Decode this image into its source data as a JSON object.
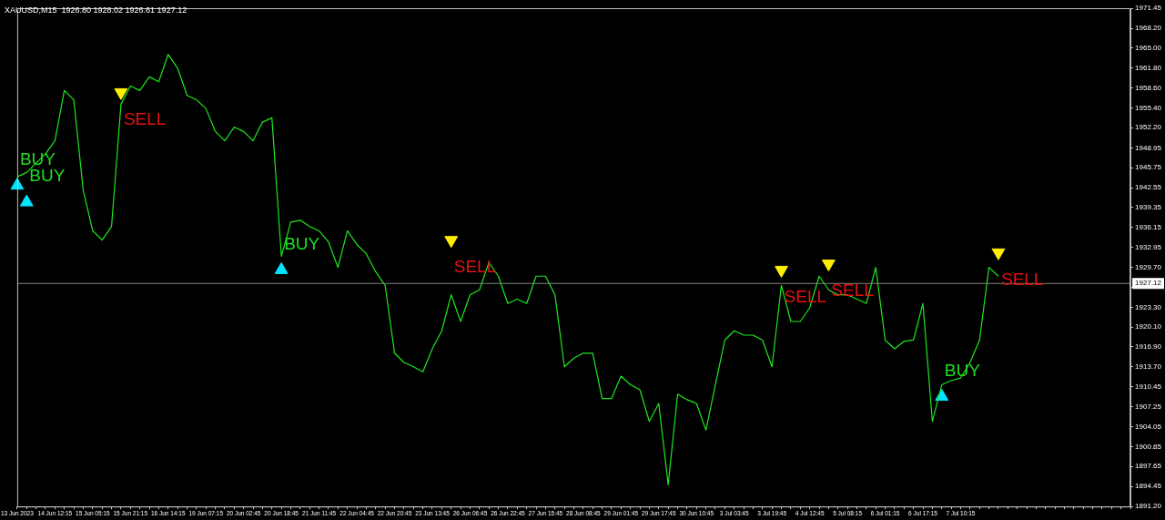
{
  "chart_data": {
    "type": "line",
    "title": "XAUUSD,M15  1926.80 1928.02 1926.61 1927.12",
    "categories": [
      "13 Jun 2023",
      null,
      null,
      null,
      "14 Jun 12:15",
      null,
      null,
      null,
      "15 Jun 05:15",
      null,
      null,
      null,
      "15 Jun 21:15",
      null,
      null,
      null,
      "16 Jun 14:15",
      null,
      null,
      null,
      "19 Jun 07:15",
      null,
      null,
      null,
      "20 Jun 02:45",
      null,
      null,
      null,
      "20 Jun 18:45",
      null,
      null,
      null,
      "21 Jun 11:45",
      null,
      null,
      null,
      "22 Jun 04:45",
      null,
      null,
      null,
      "22 Jun 20:45",
      null,
      null,
      null,
      "23 Jun 13:45",
      null,
      null,
      null,
      "26 Jun 06:45",
      null,
      null,
      null,
      "26 Jun 22:45",
      null,
      null,
      null,
      "27 Jun 15:45",
      null,
      null,
      null,
      "28 Jun 08:45",
      null,
      null,
      null,
      "29 Jun 01:45",
      null,
      null,
      null,
      "29 Jun 17:45",
      null,
      null,
      null,
      "30 Jun 10:45",
      null,
      null,
      null,
      "3 Jul 03:45",
      null,
      null,
      null,
      "3 Jul 19:45",
      null,
      null,
      null,
      "4 Jul 12:45",
      null,
      null,
      null,
      "5 Jul 08:15",
      null,
      null,
      null,
      "6 Jul 01:15",
      null,
      null,
      null,
      "6 Jul 17:15",
      null,
      null,
      null,
      "7 Jul 10:15",
      null,
      null,
      null,
      null,
      null,
      null,
      null,
      null,
      null,
      null,
      null,
      null,
      null,
      null,
      null,
      null,
      null,
      null
    ],
    "series": [
      {
        "color": "#1ee81e",
        "marker": "none",
        "values": [
          1944.3,
          1945.0,
          1946.5,
          1948.0,
          1950.1,
          1958.2,
          1956.7,
          1942.1,
          1935.6,
          1934.1,
          1936.3,
          1956.0,
          1958.9,
          1958.2,
          1960.4,
          1959.6,
          1964.0,
          1961.8,
          1957.4,
          1956.7,
          1955.3,
          1951.6,
          1950.1,
          1952.3,
          1951.6,
          1950.1,
          1953.1,
          1953.8,
          1931.5,
          1937.0,
          1937.3,
          1936.3,
          1935.6,
          1933.8,
          1929.7,
          1935.6,
          1933.4,
          1931.9,
          1929.0,
          1926.8,
          1915.9,
          1914.4,
          1913.7,
          1912.9,
          1916.6,
          1919.5,
          1925.3,
          1921.0,
          1925.3,
          1926.1,
          1930.5,
          1928.3,
          1923.9,
          1924.6,
          1923.9,
          1928.3,
          1928.3,
          1925.3,
          1913.7,
          1915.1,
          1915.9,
          1915.9,
          1908.6,
          1908.6,
          1912.2,
          1910.8,
          1910.0,
          1904.9,
          1907.8,
          1894.7,
          1909.3,
          1908.4,
          1907.8,
          1903.5,
          1910.8,
          1918.0,
          1919.5,
          1918.8,
          1918.8,
          1918.0,
          1913.7,
          1926.8,
          1921.0,
          1921.0,
          1923.2,
          1928.3,
          1926.1,
          1925.3,
          1925.3,
          1924.6,
          1923.9,
          1929.7,
          1918.0,
          1916.6,
          1917.8,
          1918.0,
          1923.9,
          1904.9,
          1910.8,
          1911.5,
          1911.9,
          1914.4,
          1918.0,
          1929.7,
          1928.3,
          null,
          null,
          null,
          null,
          null,
          null,
          null,
          null,
          null,
          null,
          null,
          null,
          null,
          null
        ]
      },
      {
        "type": "scatter",
        "color": "#00e5ff",
        "marker": "triangle",
        "values": [
          1942.9,
          1940.2,
          null,
          null,
          null,
          null,
          null,
          null,
          null,
          null,
          null,
          null,
          null,
          null,
          null,
          null,
          null,
          null,
          null,
          null,
          null,
          null,
          null,
          null,
          null,
          null,
          null,
          null,
          1929.3,
          null,
          null,
          null,
          null,
          null,
          null,
          null,
          null,
          null,
          null,
          null,
          null,
          null,
          null,
          null,
          null,
          null,
          null,
          null,
          null,
          null,
          null,
          null,
          null,
          null,
          null,
          null,
          null,
          null,
          null,
          null,
          null,
          null,
          null,
          null,
          null,
          null,
          null,
          null,
          null,
          null,
          null,
          null,
          null,
          null,
          null,
          null,
          null,
          null,
          null,
          null,
          null,
          null,
          null,
          null,
          null,
          null,
          null,
          null,
          null,
          null,
          null,
          null,
          null,
          null,
          null,
          null,
          null,
          null,
          1908.9,
          null,
          null,
          null,
          null,
          null,
          null,
          null,
          null,
          null,
          null,
          null,
          null,
          null,
          null,
          null,
          null,
          null,
          null,
          null,
          null
        ],
        "value_labels": [
          "BUY",
          "BUY",
          null,
          null,
          null,
          null,
          null,
          null,
          null,
          null,
          null,
          null,
          null,
          null,
          null,
          null,
          null,
          null,
          null,
          null,
          null,
          null,
          null,
          null,
          null,
          null,
          null,
          null,
          "BUY",
          null,
          null,
          null,
          null,
          null,
          null,
          null,
          null,
          null,
          null,
          null,
          null,
          null,
          null,
          null,
          null,
          null,
          null,
          null,
          null,
          null,
          null,
          null,
          null,
          null,
          null,
          null,
          null,
          null,
          null,
          null,
          null,
          null,
          null,
          null,
          null,
          null,
          null,
          null,
          null,
          null,
          null,
          null,
          null,
          null,
          null,
          null,
          null,
          null,
          null,
          null,
          null,
          null,
          null,
          null,
          null,
          null,
          null,
          null,
          null,
          null,
          null,
          null,
          null,
          null,
          null,
          null,
          null,
          null,
          "BUY",
          null,
          null,
          null,
          null,
          null,
          null,
          null,
          null,
          null,
          null,
          null,
          null,
          null,
          null,
          null,
          null,
          null,
          null,
          null,
          null
        ]
      },
      {
        "type": "scatter",
        "color": "#ffee00",
        "marker": "triangle",
        "values": [
          null,
          null,
          null,
          null,
          null,
          null,
          null,
          null,
          null,
          null,
          null,
          1957.9,
          null,
          null,
          null,
          null,
          null,
          null,
          null,
          null,
          null,
          null,
          null,
          null,
          null,
          null,
          null,
          null,
          null,
          null,
          null,
          null,
          null,
          null,
          null,
          null,
          null,
          null,
          null,
          null,
          null,
          null,
          null,
          null,
          null,
          null,
          1934.1,
          null,
          null,
          null,
          null,
          null,
          null,
          null,
          null,
          null,
          null,
          null,
          null,
          null,
          null,
          null,
          null,
          null,
          null,
          null,
          null,
          null,
          null,
          null,
          null,
          null,
          null,
          null,
          null,
          null,
          null,
          null,
          null,
          null,
          null,
          1929.3,
          null,
          null,
          null,
          null,
          1930.3,
          null,
          null,
          null,
          null,
          null,
          null,
          null,
          null,
          null,
          null,
          null,
          null,
          null,
          null,
          null,
          null,
          null,
          1932.1,
          null,
          null,
          null,
          null,
          null,
          null,
          null,
          null,
          null,
          null,
          null,
          null,
          null,
          null
        ],
        "value_labels": [
          null,
          null,
          null,
          null,
          null,
          null,
          null,
          null,
          null,
          null,
          null,
          "SELL",
          null,
          null,
          null,
          null,
          null,
          null,
          null,
          null,
          null,
          null,
          null,
          null,
          null,
          null,
          null,
          null,
          null,
          null,
          null,
          null,
          null,
          null,
          null,
          null,
          null,
          null,
          null,
          null,
          null,
          null,
          null,
          null,
          null,
          null,
          "SELL",
          null,
          null,
          null,
          null,
          null,
          null,
          null,
          null,
          null,
          null,
          null,
          null,
          null,
          null,
          null,
          null,
          null,
          null,
          null,
          null,
          null,
          null,
          null,
          null,
          null,
          null,
          null,
          null,
          null,
          null,
          null,
          null,
          null,
          null,
          "SELL",
          null,
          null,
          null,
          null,
          "SELL",
          null,
          null,
          null,
          null,
          null,
          null,
          null,
          null,
          null,
          null,
          null,
          null,
          null,
          null,
          null,
          null,
          null,
          "SELL",
          null,
          null,
          null,
          null,
          null,
          null,
          null,
          null,
          null,
          null,
          null,
          null,
          null,
          null
        ]
      }
    ],
    "ylim": [
      1891.2,
      1971.45
    ],
    "yticks": [
      {
        "value": 1971.45,
        "label": "1971.45"
      },
      {
        "value": 1968.2,
        "label": "1968.20"
      },
      {
        "value": 1965,
        "label": "1965.00"
      },
      {
        "value": 1961.8,
        "label": "1961.80"
      },
      {
        "value": 1958.6,
        "label": "1958.60"
      },
      {
        "value": 1955.4,
        "label": "1955.40"
      },
      {
        "value": 1952.2,
        "label": "1952.20"
      },
      {
        "value": 1948.95,
        "label": "1948.95"
      },
      {
        "value": 1945.75,
        "label": "1945.75"
      },
      {
        "value": 1942.55,
        "label": "1942.55"
      },
      {
        "value": 1939.35,
        "label": "1939.35"
      },
      {
        "value": 1936.15,
        "label": "1936.15"
      },
      {
        "value": 1932.95,
        "label": "1932.95"
      },
      {
        "value": 1929.7,
        "label": "1929.70"
      },
      {
        "value": 1926.5,
        "label": null
      },
      {
        "value": 1923.3,
        "label": "1923.30"
      },
      {
        "value": 1920.1,
        "label": "1920.10"
      },
      {
        "value": 1916.9,
        "label": "1916.90"
      },
      {
        "value": 1913.7,
        "label": "1913.70"
      },
      {
        "value": 1910.45,
        "label": "1910.45"
      },
      {
        "value": 1907.25,
        "label": "1907.25"
      },
      {
        "value": 1904.05,
        "label": "1904.05"
      },
      {
        "value": 1900.85,
        "label": "1900.85"
      },
      {
        "value": 1897.65,
        "label": "1897.65"
      },
      {
        "value": 1894.45,
        "label": "1894.45"
      },
      {
        "value": 1891.2,
        "label": "1891.20"
      }
    ],
    "ref_lines": [
      {
        "axis": "y",
        "value": 1927.12,
        "label": "1927.12",
        "color": "#808080"
      }
    ],
    "grid": false,
    "legend": false
  }
}
